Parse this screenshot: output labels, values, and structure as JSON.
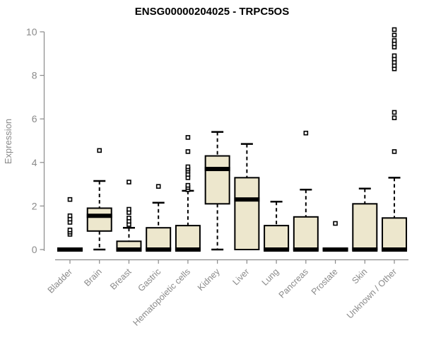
{
  "chart_data": {
    "type": "boxplot",
    "title": "ENSG00000204025 - TRPC5OS",
    "ylabel": "Expression",
    "xlabel": "",
    "ylim": [
      0,
      10
    ],
    "yticks": [
      0,
      2,
      4,
      6,
      8,
      10
    ],
    "grid": false,
    "legend": "none",
    "categories": [
      "Bladder",
      "Brain",
      "Breast",
      "Gastric",
      "Hematopoietic cells",
      "Kidney",
      "Liver",
      "Lung",
      "Pancreas",
      "Prostate",
      "Skin",
      "Unknown / Other"
    ],
    "series": [
      {
        "category": "Bladder",
        "low": 0,
        "q1": 0,
        "median": 0,
        "q3": 0.05,
        "high": 0.05,
        "outliers": [
          0.7,
          0.8,
          0.9,
          1.25,
          1.4,
          1.55,
          2.3
        ]
      },
      {
        "category": "Brain",
        "low": 0,
        "q1": 0.85,
        "median": 1.55,
        "q3": 1.9,
        "high": 3.15,
        "outliers": [
          4.55
        ]
      },
      {
        "category": "Breast",
        "low": 0,
        "q1": 0,
        "median": 0,
        "q3": 0.38,
        "high": 1.0,
        "outliers": [
          1.15,
          1.3,
          1.45,
          1.7,
          1.85,
          3.1
        ]
      },
      {
        "category": "Gastric",
        "low": 0,
        "q1": 0,
        "median": 0,
        "q3": 1.0,
        "high": 2.15,
        "outliers": [
          2.9
        ]
      },
      {
        "category": "Hematopoietic cells",
        "low": 0,
        "q1": 0,
        "median": 0,
        "q3": 1.1,
        "high": 2.7,
        "outliers": [
          2.75,
          2.85,
          2.95,
          3.3,
          3.45,
          3.6,
          3.7,
          3.8,
          4.5,
          5.15
        ]
      },
      {
        "category": "Kidney",
        "low": 0,
        "q1": 2.1,
        "median": 3.7,
        "q3": 4.3,
        "high": 5.4,
        "outliers": []
      },
      {
        "category": "Liver",
        "low": 0,
        "q1": 0,
        "median": 2.3,
        "q3": 3.3,
        "high": 4.85,
        "outliers": []
      },
      {
        "category": "Lung",
        "low": 0,
        "q1": 0,
        "median": 0,
        "q3": 1.1,
        "high": 2.2,
        "outliers": []
      },
      {
        "category": "Pancreas",
        "low": 0,
        "q1": 0,
        "median": 0,
        "q3": 1.5,
        "high": 2.75,
        "outliers": [
          5.35
        ]
      },
      {
        "category": "Prostate",
        "low": 0,
        "q1": 0,
        "median": 0,
        "q3": 0.05,
        "high": 0.05,
        "outliers": [
          1.2
        ]
      },
      {
        "category": "Skin",
        "low": 0,
        "q1": 0,
        "median": 0,
        "q3": 2.1,
        "high": 2.8,
        "outliers": []
      },
      {
        "category": "Unknown / Other",
        "low": 0,
        "q1": 0,
        "median": 0,
        "q3": 1.45,
        "high": 3.3,
        "outliers": [
          4.5,
          6.05,
          6.3,
          8.3,
          8.45,
          8.6,
          8.75,
          8.9,
          9.3,
          9.45,
          9.6,
          9.85,
          10.1
        ]
      }
    ],
    "colors": {
      "box_fill": "#ede7cd",
      "box_stroke": "#000000",
      "median": "#000000",
      "whisker": "#000000",
      "outlier_stroke": "#000000",
      "outlier_fill": "#ffffff",
      "axis": "#8a8a8a",
      "tick_label": "#8a8a8a",
      "title": "#000000",
      "background": "#ffffff"
    }
  }
}
